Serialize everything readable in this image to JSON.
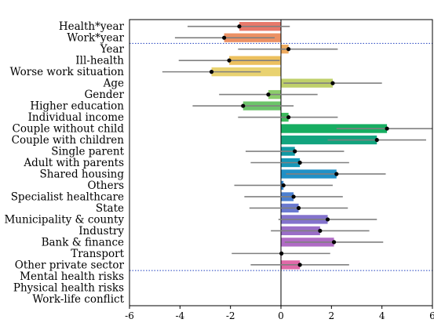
{
  "chart_data": {
    "type": "bar",
    "orientation": "horizontal",
    "title": "",
    "xlabel": "",
    "ylabel": "",
    "xlim": [
      -6,
      6
    ],
    "xticks": [
      -6,
      -4,
      -2,
      0,
      2,
      4,
      6
    ],
    "grid": false,
    "zero_line": true,
    "separator_after": [
      "Work*year",
      "Other private sector"
    ],
    "separator_color": "#1f3fbf",
    "error_bar_color": "#808080",
    "point_color": "#000000",
    "categories": [
      "Health*year",
      "Work*year",
      "Year",
      "Ill-health",
      "Worse work situation",
      "Age",
      "Gender",
      "Higher education",
      "Individual income",
      "Couple without child",
      "Couple with children",
      "Single parent",
      "Adult with parents",
      "Shared housing",
      "Others",
      "Specialist healthcare",
      "State",
      "Municipality & county",
      "Industry",
      "Bank & finance",
      "Transport",
      "Other private sector",
      "Mental health risks",
      "Physical health risks",
      "Work-life conflict"
    ],
    "values": [
      -1.65,
      -2.25,
      0.3,
      -2.05,
      -2.75,
      2.05,
      -0.5,
      -1.5,
      0.3,
      4.2,
      3.8,
      0.55,
      0.75,
      2.2,
      0.1,
      0.5,
      0.7,
      1.85,
      1.55,
      2.1,
      0.02,
      0.75,
      null,
      null,
      null
    ],
    "ci_low": [
      -3.7,
      -4.2,
      -1.7,
      -4.05,
      -4.7,
      0.1,
      -2.45,
      -3.5,
      -1.7,
      2.2,
      1.85,
      -1.4,
      -1.2,
      0.2,
      -1.85,
      -1.45,
      -1.25,
      -0.1,
      -0.4,
      0.15,
      -1.95,
      -1.2,
      null,
      null,
      null
    ],
    "ci_high": [
      0.35,
      -0.25,
      2.25,
      -0.05,
      -0.8,
      4.0,
      1.45,
      0.5,
      2.25,
      6.2,
      5.75,
      2.5,
      2.7,
      4.15,
      2.05,
      2.45,
      2.65,
      3.8,
      3.5,
      4.05,
      1.95,
      2.7,
      null,
      null,
      null
    ],
    "colors": [
      "#e8786a",
      "#ec9164",
      "#eeab5f",
      "#ecc05e",
      "#e9d270",
      "#bfd06a",
      "#8ccc6c",
      "#6cc46a",
      "#3cba5c",
      "#16ad61",
      "#12a47e",
      "#1099a3",
      "#1697b7",
      "#2190c6",
      "#3284cc",
      "#4c7fd0",
      "#6a79d0",
      "#8372cc",
      "#9a6dc7",
      "#b06bc5",
      "#c86bbf",
      "#e06aa8",
      null,
      null,
      null
    ]
  }
}
